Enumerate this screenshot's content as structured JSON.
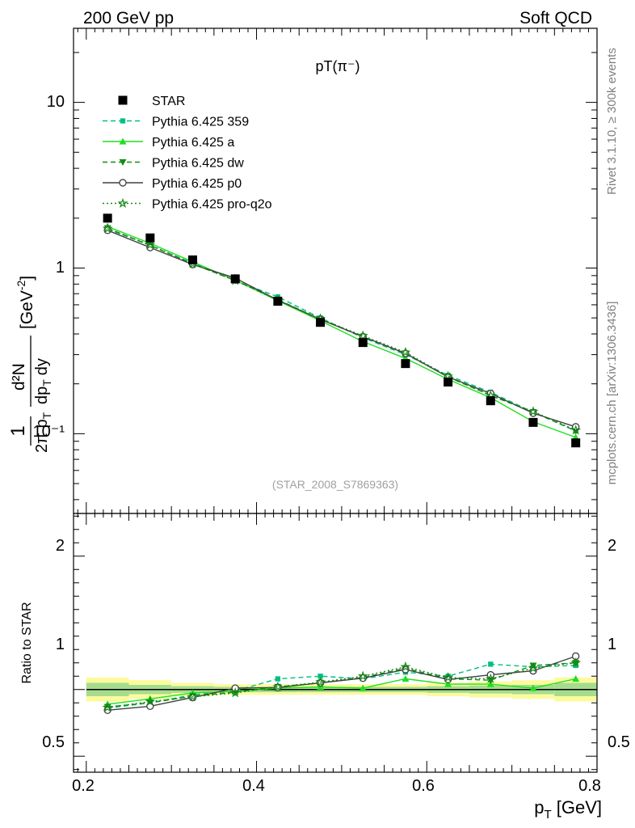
{
  "header": {
    "left": "200 GeV pp",
    "right": "Soft QCD"
  },
  "side_labels": {
    "top": "Rivet 3.1.10, ≥ 300k events",
    "bottom": "mcplots.cern.ch [arXiv:1306.3436]"
  },
  "chart_data": [
    {
      "type": "line",
      "title": "pT(π⁻)",
      "analysis_tag": "(STAR_2008_S7869363)",
      "ylabel": "1/(2π p_T) d²N/(dp_T dy) [GeV⁻²]",
      "ylabel_parts": {
        "one": "1",
        "denom_left": "2π p",
        "denom_sub": "T",
        "num": "d²N",
        "num_sup": "2",
        "dp": "dp",
        "dy": "dy",
        "unit": "[GeV",
        "unit_sup": "-2",
        "unit_close": "]"
      },
      "yscale": "log",
      "xlim": [
        0.185,
        0.8
      ],
      "ylim": [
        0.033,
        28
      ],
      "ytick_labels": [
        "10⁻¹",
        "1",
        "10"
      ],
      "x": [
        0.225,
        0.275,
        0.325,
        0.375,
        0.425,
        0.475,
        0.525,
        0.575,
        0.625,
        0.675,
        0.725,
        0.775
      ],
      "series": [
        {
          "name": "STAR",
          "color": "#000000",
          "style": "marker-only",
          "marker": "square",
          "values": [
            2.0,
            1.52,
            1.12,
            0.86,
            0.63,
            0.47,
            0.355,
            0.265,
            0.205,
            0.158,
            0.117,
            0.088
          ]
        },
        {
          "name": "Pythia 6.425 359",
          "color": "#00bf80",
          "style": "dashed",
          "marker": "small-square",
          "values": [
            1.72,
            1.37,
            1.07,
            0.84,
            0.67,
            0.5,
            0.38,
            0.3,
            0.225,
            0.178,
            0.135,
            0.104
          ]
        },
        {
          "name": "Pythia 6.425 a",
          "color": "#1ee01e",
          "style": "solid",
          "marker": "triangle-up",
          "values": [
            1.78,
            1.41,
            1.09,
            0.845,
            0.635,
            0.48,
            0.36,
            0.285,
            0.213,
            0.165,
            0.118,
            0.095
          ]
        },
        {
          "name": "Pythia 6.425 dw",
          "color": "#109010",
          "style": "dashed",
          "marker": "triangle-down",
          "values": [
            1.74,
            1.37,
            1.06,
            0.84,
            0.645,
            0.49,
            0.385,
            0.305,
            0.22,
            0.17,
            0.135,
            0.104
          ]
        },
        {
          "name": "Pythia 6.425 p0",
          "color": "#404040",
          "style": "solid",
          "marker": "open-circle",
          "values": [
            1.69,
            1.33,
            1.05,
            0.87,
            0.64,
            0.49,
            0.385,
            0.305,
            0.22,
            0.175,
            0.133,
            0.11
          ]
        },
        {
          "name": "Pythia 6.425 pro-q2o",
          "color": "#188a18",
          "style": "dotted",
          "marker": "open-star",
          "values": [
            1.73,
            1.38,
            1.06,
            0.84,
            0.64,
            0.495,
            0.39,
            0.31,
            0.222,
            0.17,
            0.136,
            0.105
          ]
        }
      ]
    },
    {
      "type": "line",
      "ylabel": "Ratio to STAR",
      "xlabel": "p_T [GeV]",
      "xlabel_parts": {
        "p": "p",
        "sub": "T",
        "unit": " [GeV]"
      },
      "xlim": [
        0.185,
        0.8
      ],
      "ylim": [
        0.38,
        2.32
      ],
      "xticks": [
        0.2,
        0.4,
        0.6,
        0.8
      ],
      "xtick_labels": [
        "0.2",
        "0.4",
        "0.6",
        "0.8"
      ],
      "yticks": [
        0.5,
        1,
        2
      ],
      "ytick_labels": [
        "0.5",
        "1",
        "2"
      ],
      "reference_line": 1,
      "uncertainty_band": {
        "outer_color": "#fbfb9e",
        "inner_color": "#a6dc8e",
        "x_edges": [
          0.2,
          0.25,
          0.3,
          0.35,
          0.4,
          0.45,
          0.5,
          0.55,
          0.6,
          0.65,
          0.7,
          0.75,
          0.8
        ],
        "outer_half": [
          0.09,
          0.07,
          0.05,
          0.04,
          0.04,
          0.04,
          0.04,
          0.04,
          0.05,
          0.06,
          0.07,
          0.09
        ],
        "inner_half": [
          0.05,
          0.035,
          0.025,
          0.02,
          0.02,
          0.02,
          0.02,
          0.02,
          0.025,
          0.03,
          0.035,
          0.05
        ]
      },
      "x": [
        0.225,
        0.275,
        0.325,
        0.375,
        0.425,
        0.475,
        0.525,
        0.575,
        0.625,
        0.675,
        0.725,
        0.775
      ],
      "series": [
        {
          "name": "Pythia 6.425 359",
          "values": [
            0.86,
            0.9,
            0.96,
            0.99,
            1.08,
            1.1,
            1.08,
            1.13,
            1.1,
            1.19,
            1.17,
            1.18
          ]
        },
        {
          "name": "Pythia 6.425 a",
          "values": [
            0.89,
            0.93,
            0.975,
            0.985,
            1.01,
            1.02,
            1.01,
            1.08,
            1.04,
            1.04,
            1.01,
            1.08
          ]
        },
        {
          "name": "Pythia 6.425 dw",
          "values": [
            0.87,
            0.9,
            0.95,
            0.98,
            1.02,
            1.05,
            1.09,
            1.16,
            1.08,
            1.07,
            1.18,
            1.2
          ]
        },
        {
          "name": "Pythia 6.425 p0",
          "values": [
            0.845,
            0.875,
            0.94,
            1.01,
            1.015,
            1.05,
            1.085,
            1.15,
            1.075,
            1.11,
            1.14,
            1.25
          ]
        },
        {
          "name": "Pythia 6.425 pro-q2o",
          "values": [
            0.865,
            0.91,
            0.945,
            0.975,
            1.02,
            1.055,
            1.1,
            1.17,
            1.09,
            1.08,
            1.16,
            1.2
          ]
        }
      ]
    }
  ]
}
